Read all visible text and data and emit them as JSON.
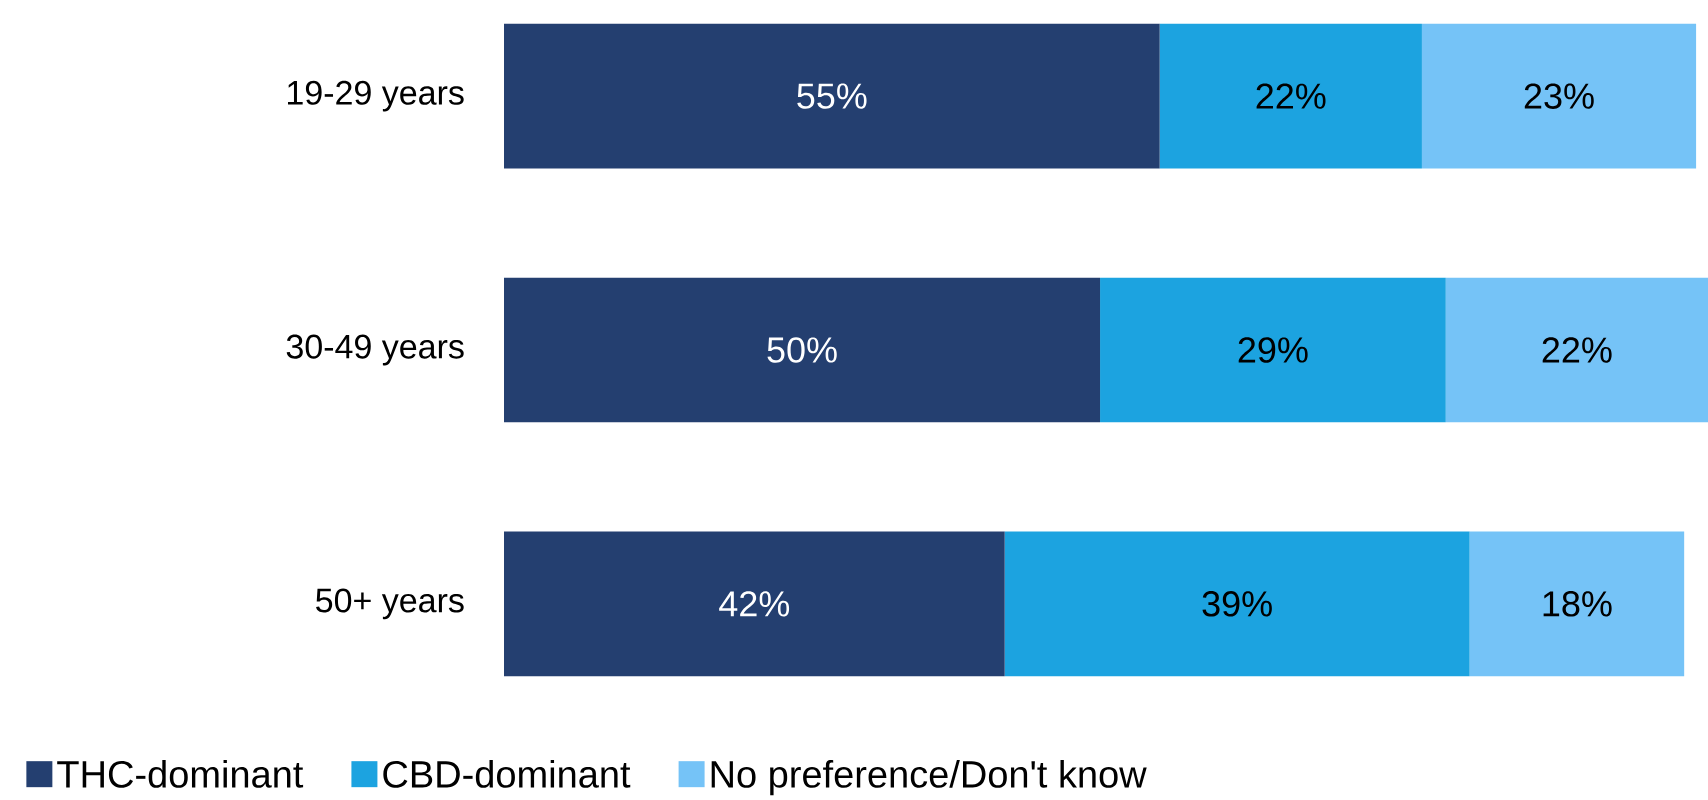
{
  "chart_data": {
    "type": "bar",
    "orientation": "horizontal",
    "stacked": true,
    "legend": "bottom",
    "categories": [
      "19-29 years",
      "30-49 years",
      "50+ years"
    ],
    "series": [
      {
        "name": "THC-dominant",
        "color": "#243f70",
        "values": [
          55,
          50,
          42
        ],
        "value_labels": [
          "55%",
          "50%",
          "42%"
        ]
      },
      {
        "name": "CBD-dominant",
        "color": "#1ca3e0",
        "values": [
          22,
          29,
          39
        ],
        "value_labels": [
          "22%",
          "29%",
          "39%"
        ]
      },
      {
        "name": "No preference/Don't know",
        "color": "#75c3f7",
        "values": [
          23,
          22,
          18
        ],
        "value_labels": [
          "23%",
          "22%",
          "18%"
        ]
      }
    ]
  }
}
